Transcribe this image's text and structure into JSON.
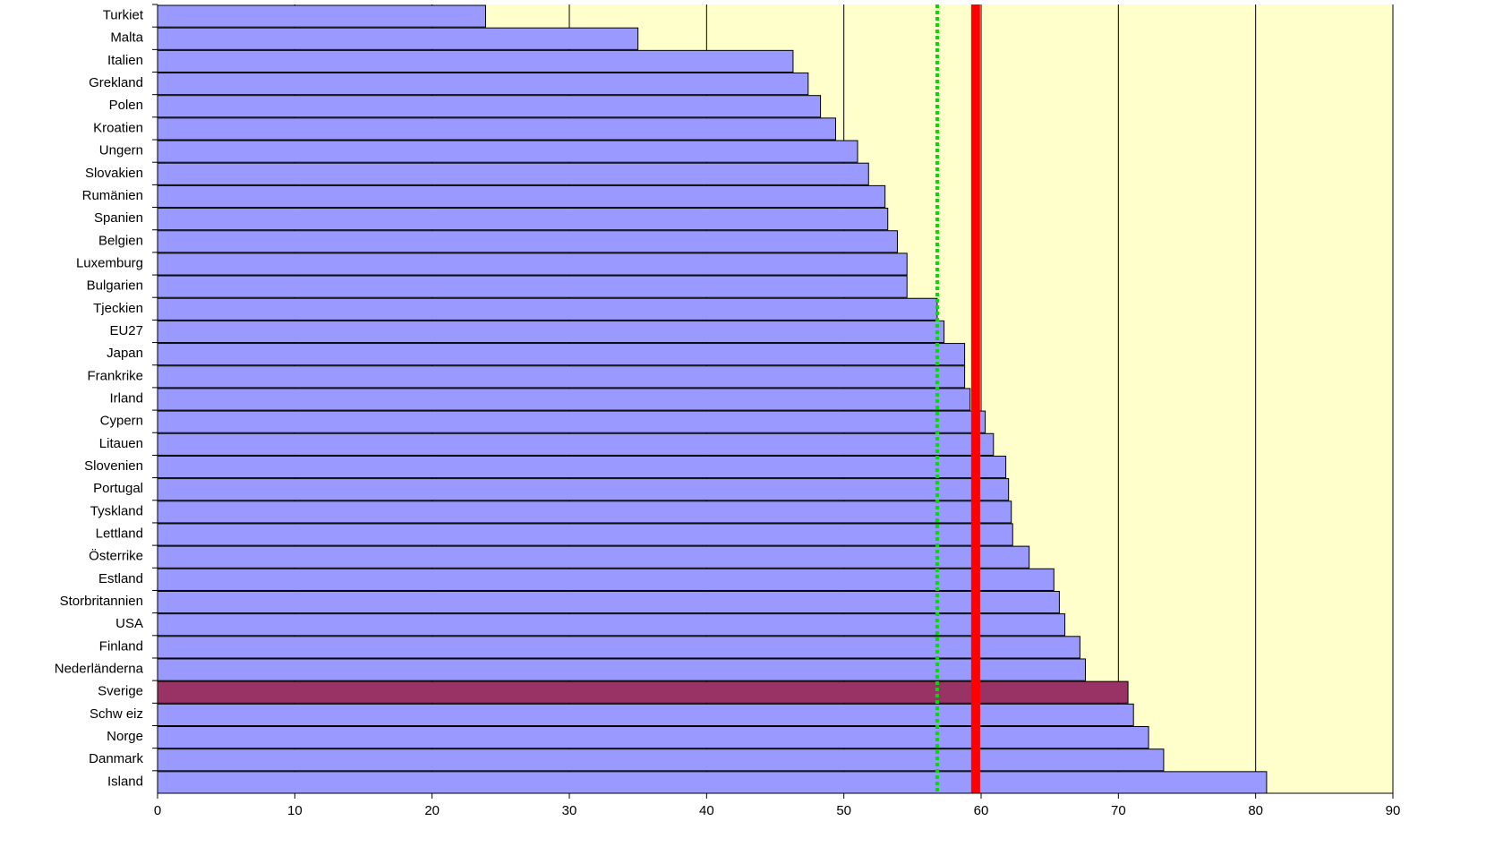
{
  "chart_data": {
    "type": "barh",
    "categories": [
      "Turkiet",
      "Malta",
      "Italien",
      "Grekland",
      "Polen",
      "Kroatien",
      "Ungern",
      "Slovakien",
      "Rumänien",
      "Spanien",
      "Belgien",
      "Luxemburg",
      "Bulgarien",
      "Tjeckien",
      "EU27",
      "Japan",
      "Frankrike",
      "Irland",
      "Cypern",
      "Litauen",
      "Slovenien",
      "Portugal",
      "Tyskland",
      "Lettland",
      "Österrike",
      "Estland",
      "Storbritannien",
      "USA",
      "Finland",
      "Nederländerna",
      "Sverige",
      "Schw eiz",
      "Norge",
      "Danmark",
      "Island"
    ],
    "values": [
      23.9,
      35.0,
      46.3,
      47.4,
      48.3,
      49.4,
      51.0,
      51.8,
      53.0,
      53.2,
      53.9,
      54.6,
      54.6,
      56.8,
      57.3,
      58.8,
      58.8,
      59.2,
      60.3,
      60.9,
      61.8,
      62.0,
      62.2,
      62.3,
      63.5,
      65.3,
      65.7,
      66.1,
      67.2,
      67.6,
      70.7,
      71.1,
      72.2,
      73.3,
      80.8
    ],
    "colors": [
      "#9999ff",
      "#9999ff",
      "#9999ff",
      "#9999ff",
      "#9999ff",
      "#9999ff",
      "#9999ff",
      "#9999ff",
      "#9999ff",
      "#9999ff",
      "#9999ff",
      "#9999ff",
      "#9999ff",
      "#9999ff",
      "#9999ff",
      "#9999ff",
      "#9999ff",
      "#9999ff",
      "#9999ff",
      "#9999ff",
      "#9999ff",
      "#9999ff",
      "#9999ff",
      "#9999ff",
      "#9999ff",
      "#9999ff",
      "#9999ff",
      "#9999ff",
      "#9999ff",
      "#9999ff",
      "#993366",
      "#9999ff",
      "#9999ff",
      "#9999ff",
      "#9999ff"
    ],
    "xlim": [
      0,
      90
    ],
    "xticks": [
      0,
      10,
      20,
      30,
      40,
      50,
      60,
      70,
      80,
      90
    ],
    "grid": true,
    "plot_background": "#ffffcc",
    "reference_lines": [
      {
        "value": 56.8,
        "color": "#00dd00",
        "style": "dotted"
      },
      {
        "value": 59.6,
        "color": "#ff0000",
        "style": "solid"
      }
    ]
  }
}
